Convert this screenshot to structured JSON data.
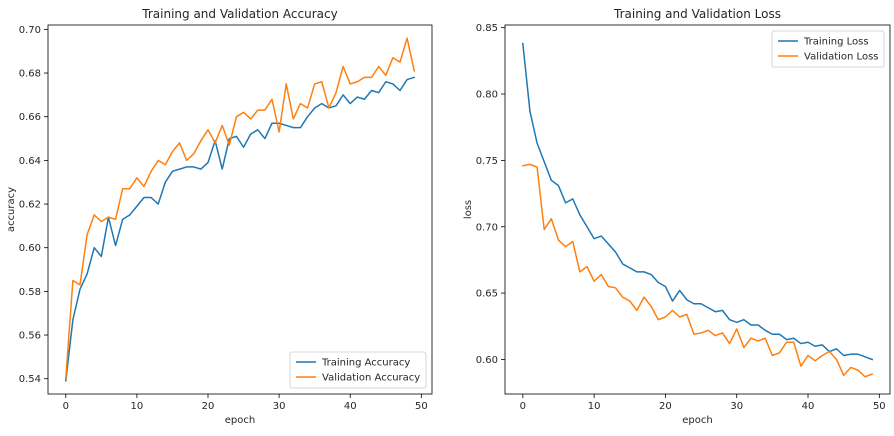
{
  "chart_data": [
    {
      "type": "line",
      "title": "Training and Validation Accuracy",
      "xlabel": "epoch",
      "ylabel": "accuracy",
      "xlim": [
        -2.5,
        51.5
      ],
      "ylim": [
        0.533,
        0.702
      ],
      "xticks": [
        "0",
        "10",
        "20",
        "30",
        "40",
        "50"
      ],
      "yticks": [
        "0.54",
        "0.56",
        "0.58",
        "0.60",
        "0.62",
        "0.64",
        "0.66",
        "0.68",
        "0.70"
      ],
      "legend": "lower-right",
      "grid": false,
      "x": [
        0,
        1,
        2,
        3,
        4,
        5,
        6,
        7,
        8,
        9,
        10,
        11,
        12,
        13,
        14,
        15,
        16,
        17,
        18,
        19,
        20,
        21,
        22,
        23,
        24,
        25,
        26,
        27,
        28,
        29,
        30,
        31,
        32,
        33,
        34,
        35,
        36,
        37,
        38,
        39,
        40,
        41,
        42,
        43,
        44,
        45,
        46,
        47,
        48,
        49
      ],
      "series": [
        {
          "name": "Training Accuracy",
          "color": "#1f77b4",
          "values": [
            0.539,
            0.567,
            0.581,
            0.588,
            0.6,
            0.596,
            0.614,
            0.601,
            0.613,
            0.615,
            0.619,
            0.623,
            0.623,
            0.62,
            0.63,
            0.635,
            0.636,
            0.637,
            0.637,
            0.636,
            0.639,
            0.649,
            0.636,
            0.65,
            0.651,
            0.646,
            0.652,
            0.654,
            0.65,
            0.657,
            0.657,
            0.656,
            0.655,
            0.655,
            0.66,
            0.664,
            0.666,
            0.664,
            0.665,
            0.67,
            0.666,
            0.669,
            0.668,
            0.672,
            0.671,
            0.676,
            0.675,
            0.672,
            0.677,
            0.678
          ]
        },
        {
          "name": "Validation Accuracy",
          "color": "#ff7f0e",
          "values": [
            0.54,
            0.585,
            0.583,
            0.606,
            0.615,
            0.612,
            0.614,
            0.613,
            0.627,
            0.627,
            0.632,
            0.628,
            0.635,
            0.64,
            0.638,
            0.644,
            0.648,
            0.64,
            0.643,
            0.649,
            0.654,
            0.648,
            0.656,
            0.647,
            0.66,
            0.662,
            0.659,
            0.663,
            0.663,
            0.668,
            0.653,
            0.675,
            0.659,
            0.666,
            0.664,
            0.675,
            0.676,
            0.664,
            0.671,
            0.683,
            0.675,
            0.676,
            0.678,
            0.678,
            0.683,
            0.679,
            0.687,
            0.685,
            0.696,
            0.681
          ]
        }
      ]
    },
    {
      "type": "line",
      "title": "Training and Validation Loss",
      "xlabel": "epoch",
      "ylabel": "loss",
      "xlim": [
        -2.5,
        51.5
      ],
      "ylim": [
        0.574,
        0.852
      ],
      "xticks": [
        "0",
        "10",
        "20",
        "30",
        "40",
        "50"
      ],
      "yticks": [
        "0.60",
        "0.65",
        "0.70",
        "0.75",
        "0.80",
        "0.85"
      ],
      "legend": "upper-right",
      "grid": false,
      "x": [
        0,
        1,
        2,
        3,
        4,
        5,
        6,
        7,
        8,
        9,
        10,
        11,
        12,
        13,
        14,
        15,
        16,
        17,
        18,
        19,
        20,
        21,
        22,
        23,
        24,
        25,
        26,
        27,
        28,
        29,
        30,
        31,
        32,
        33,
        34,
        35,
        36,
        37,
        38,
        39,
        40,
        41,
        42,
        43,
        44,
        45,
        46,
        47,
        48,
        49
      ],
      "series": [
        {
          "name": "Training Loss",
          "color": "#1f77b4",
          "values": [
            0.838,
            0.787,
            0.763,
            0.749,
            0.735,
            0.731,
            0.718,
            0.721,
            0.709,
            0.7,
            0.691,
            0.693,
            0.687,
            0.681,
            0.672,
            0.669,
            0.666,
            0.666,
            0.664,
            0.658,
            0.655,
            0.644,
            0.652,
            0.645,
            0.642,
            0.642,
            0.639,
            0.636,
            0.637,
            0.63,
            0.628,
            0.63,
            0.626,
            0.626,
            0.622,
            0.619,
            0.619,
            0.615,
            0.616,
            0.612,
            0.613,
            0.61,
            0.611,
            0.606,
            0.608,
            0.603,
            0.604,
            0.604,
            0.602,
            0.6
          ]
        },
        {
          "name": "Validation Loss",
          "color": "#ff7f0e",
          "values": [
            0.746,
            0.747,
            0.745,
            0.698,
            0.706,
            0.69,
            0.685,
            0.689,
            0.666,
            0.67,
            0.659,
            0.664,
            0.655,
            0.654,
            0.647,
            0.644,
            0.637,
            0.647,
            0.64,
            0.63,
            0.632,
            0.637,
            0.632,
            0.634,
            0.619,
            0.62,
            0.622,
            0.618,
            0.62,
            0.612,
            0.623,
            0.609,
            0.616,
            0.614,
            0.616,
            0.603,
            0.605,
            0.613,
            0.613,
            0.595,
            0.603,
            0.599,
            0.603,
            0.606,
            0.6,
            0.588,
            0.594,
            0.592,
            0.587,
            0.589
          ]
        }
      ]
    }
  ]
}
